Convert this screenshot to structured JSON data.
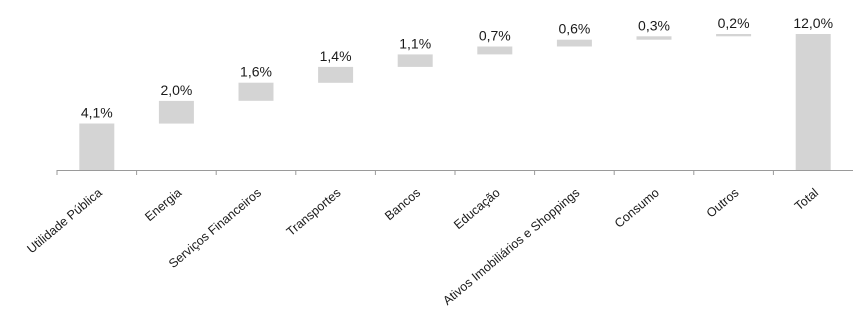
{
  "chart_data": {
    "type": "bar",
    "subtype": "waterfall",
    "title": "",
    "xlabel": "",
    "ylabel": "",
    "grid": false,
    "legend": "none",
    "bar_color": "#d4d4d4",
    "ylim": [
      0,
      12.0
    ],
    "categories": [
      "Utilidade Pública",
      "Energia",
      "Serviços Financeiros",
      "Transportes",
      "Bancos",
      "Educação",
      "Ativos Imobiliários e Shoppings",
      "Consumo",
      "Outros",
      "Total"
    ],
    "values": [
      4.1,
      2.0,
      1.6,
      1.4,
      1.1,
      0.7,
      0.6,
      0.3,
      0.2,
      12.0
    ],
    "value_labels": [
      "4,1%",
      "2,0%",
      "1,6%",
      "1,4%",
      "1,1%",
      "0,7%",
      "0,6%",
      "0,3%",
      "0,2%",
      "12,0%"
    ],
    "total_index": 9
  }
}
